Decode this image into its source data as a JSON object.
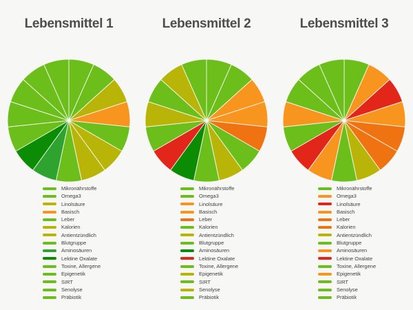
{
  "page": {
    "background": "#f7f7f6",
    "title_color": "#4d4d4d"
  },
  "palette": {
    "green": "#6CBE1A",
    "olive": "#B8B408",
    "orange": "#F8951E",
    "deep_orange": "#F07312",
    "red": "#E2261A",
    "mid_green": "#2FA32F",
    "dark_green": "#0C8C04"
  },
  "chart_data": [
    {
      "type": "pie",
      "title": "Lebensmittel 1",
      "legend_position": "bottom",
      "start_angle_deg": 0,
      "direction": "clockwise",
      "categories": [
        "Mikronährstoffe",
        "Omega3",
        "Linolsäure",
        "Basisch",
        "Leber",
        "Kalorien",
        "Antientzündlich",
        "Blutgruppe",
        "Aminosäuren",
        "Lektine Oxalate",
        "Toxine, Allergene",
        "Epigenetik",
        "SIRT",
        "Senolyse",
        "Präbiotik"
      ],
      "values": [
        1,
        1,
        1,
        1,
        1,
        1,
        1,
        1,
        1,
        1,
        1,
        1,
        1,
        1,
        1
      ],
      "slice_colors": [
        "green",
        "green",
        "olive",
        "orange",
        "green",
        "olive",
        "olive",
        "green",
        "mid_green",
        "dark_green",
        "green",
        "green",
        "green",
        "green",
        "green"
      ]
    },
    {
      "type": "pie",
      "title": "Lebensmittel 2",
      "legend_position": "bottom",
      "start_angle_deg": 0,
      "direction": "clockwise",
      "categories": [
        "Mikronährstoffe",
        "Omega3",
        "Linolsäure",
        "Basisch",
        "Leber",
        "Kalorien",
        "Antientzündlich",
        "Blutgruppe",
        "Aminosäuren",
        "Lektine Oxalate",
        "Toxine, Allergene",
        "Epigenetik",
        "SIRT",
        "Senolyse",
        "Präbiotik"
      ],
      "values": [
        1,
        1,
        1,
        1,
        1,
        1,
        1,
        1,
        1,
        1,
        1,
        1,
        1,
        1,
        1
      ],
      "slice_colors": [
        "green",
        "green",
        "orange",
        "orange",
        "deep_orange",
        "green",
        "olive",
        "green",
        "dark_green",
        "red",
        "green",
        "olive",
        "green",
        "olive",
        "green"
      ]
    },
    {
      "type": "pie",
      "title": "Lebensmittel 3",
      "legend_position": "bottom",
      "start_angle_deg": 0,
      "direction": "clockwise",
      "categories": [
        "Mikronährstoffe",
        "Omega3",
        "Linolsäure",
        "Basisch",
        "Leber",
        "Kalorien",
        "Antientzündlich",
        "Blutgruppe",
        "Aminosäuren",
        "Lektine Oxalate",
        "Toxine, Allergene",
        "Epigenetik",
        "SIRT",
        "Senolyse",
        "Präbiotik"
      ],
      "values": [
        1,
        1,
        1,
        1,
        1,
        1,
        1,
        1,
        1,
        1,
        1,
        1,
        1,
        1,
        1
      ],
      "slice_colors": [
        "green",
        "orange",
        "red",
        "orange",
        "deep_orange",
        "deep_orange",
        "olive",
        "green",
        "orange",
        "red",
        "green",
        "orange",
        "green",
        "green",
        "green"
      ]
    }
  ]
}
